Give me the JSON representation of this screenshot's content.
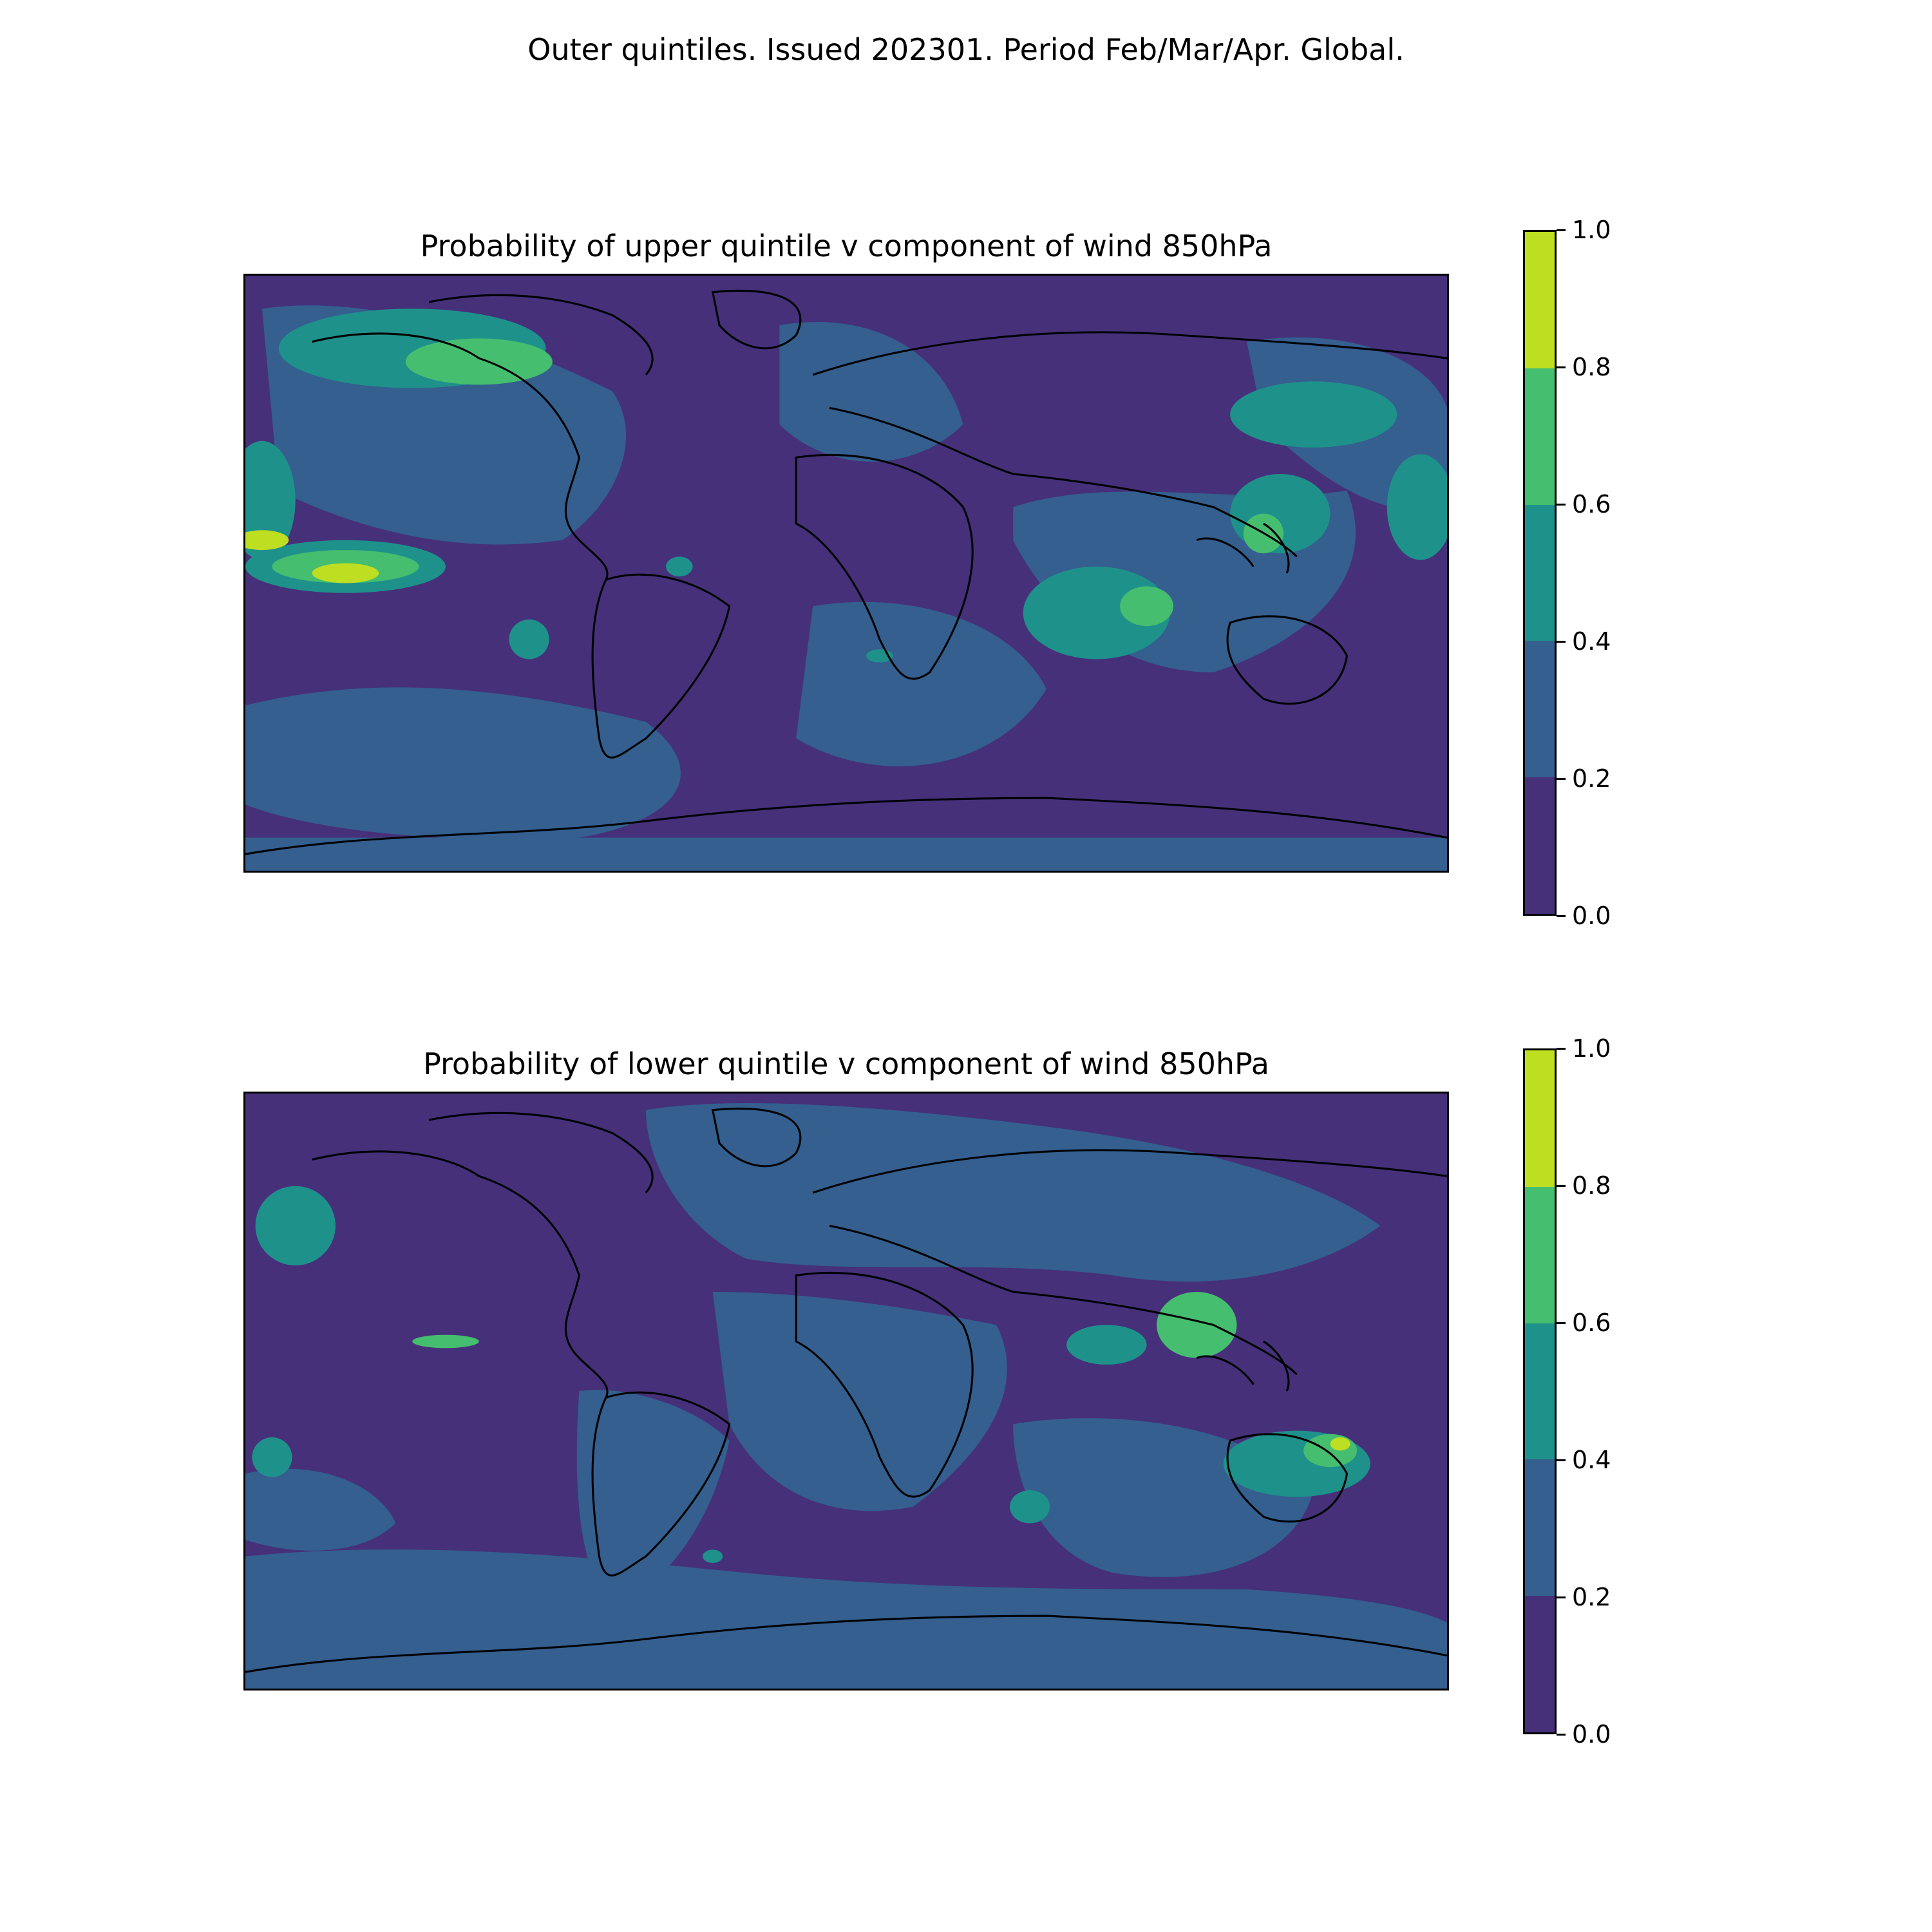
{
  "title": "Outer quintiles. Issued 202301. Period Feb/Mar/Apr. Global.",
  "colors": {
    "levels": [
      "#46307a",
      "#345f8f",
      "#1f918b",
      "#45be6f",
      "#bede22"
    ],
    "coastline": "#000000"
  },
  "panels": [
    {
      "title": "Probability of upper quintile v component of wind 850hPa",
      "map_extent": {
        "lon": [
          -180,
          180
        ],
        "lat": [
          -90,
          90
        ]
      },
      "colorbar": {
        "ticks": [
          "0.0",
          "0.2",
          "0.4",
          "0.6",
          "0.8",
          "1.0"
        ]
      },
      "regions": [
        {
          "level": 2,
          "lon": -130,
          "lat": 68,
          "rlon": 40,
          "rlat": 12
        },
        {
          "level": 3,
          "lon": -110,
          "lat": 64,
          "rlon": 22,
          "rlat": 7
        },
        {
          "level": 2,
          "lon": -175,
          "lat": 22,
          "rlon": 10,
          "rlat": 18
        },
        {
          "level": 2,
          "lon": -150,
          "lat": 2,
          "rlon": 30,
          "rlat": 8
        },
        {
          "level": 3,
          "lon": -150,
          "lat": 2,
          "rlon": 22,
          "rlat": 5
        },
        {
          "level": 4,
          "lon": -175,
          "lat": 10,
          "rlon": 8,
          "rlat": 3
        },
        {
          "level": 4,
          "lon": -150,
          "lat": 0,
          "rlon": 10,
          "rlat": 3
        },
        {
          "level": 2,
          "lon": -95,
          "lat": -20,
          "rlon": 6,
          "rlat": 6
        },
        {
          "level": 2,
          "lon": -50,
          "lat": 2,
          "rlon": 4,
          "rlat": 3
        },
        {
          "level": 2,
          "lon": 10,
          "lat": -25,
          "rlon": 4,
          "rlat": 2
        },
        {
          "level": 2,
          "lon": 75,
          "lat": -12,
          "rlon": 22,
          "rlat": 14
        },
        {
          "level": 3,
          "lon": 90,
          "lat": -10,
          "rlon": 8,
          "rlat": 6
        },
        {
          "level": 2,
          "lon": 140,
          "lat": 48,
          "rlon": 25,
          "rlat": 10
        },
        {
          "level": 2,
          "lon": 130,
          "lat": 18,
          "rlon": 15,
          "rlat": 12
        },
        {
          "level": 3,
          "lon": 125,
          "lat": 12,
          "rlon": 6,
          "rlat": 6
        },
        {
          "level": 2,
          "lon": 172,
          "lat": 20,
          "rlon": 10,
          "rlat": 16
        }
      ]
    },
    {
      "title": "Probability of lower quintile v component of wind 850hPa",
      "map_extent": {
        "lon": [
          -180,
          180
        ],
        "lat": [
          -90,
          90
        ]
      },
      "colorbar": {
        "ticks": [
          "0.0",
          "0.2",
          "0.4",
          "0.6",
          "0.8",
          "1.0"
        ]
      },
      "regions": [
        {
          "level": 2,
          "lon": -165,
          "lat": 50,
          "rlon": 12,
          "rlat": 12
        },
        {
          "level": 3,
          "lon": -120,
          "lat": 15,
          "rlon": 10,
          "rlat": 2
        },
        {
          "level": 2,
          "lon": 78,
          "lat": 14,
          "rlon": 12,
          "rlat": 6
        },
        {
          "level": 3,
          "lon": 105,
          "lat": 20,
          "rlon": 12,
          "rlat": 10
        },
        {
          "level": 2,
          "lon": 135,
          "lat": -22,
          "rlon": 22,
          "rlat": 10
        },
        {
          "level": 3,
          "lon": 145,
          "lat": -18,
          "rlon": 8,
          "rlat": 5
        },
        {
          "level": 4,
          "lon": 148,
          "lat": -16,
          "rlon": 3,
          "rlat": 2
        },
        {
          "level": 2,
          "lon": -172,
          "lat": -20,
          "rlon": 6,
          "rlat": 6
        },
        {
          "level": 2,
          "lon": 55,
          "lat": -35,
          "rlon": 6,
          "rlat": 5
        },
        {
          "level": 2,
          "lon": -40,
          "lat": -50,
          "rlon": 3,
          "rlat": 2
        }
      ]
    }
  ]
}
